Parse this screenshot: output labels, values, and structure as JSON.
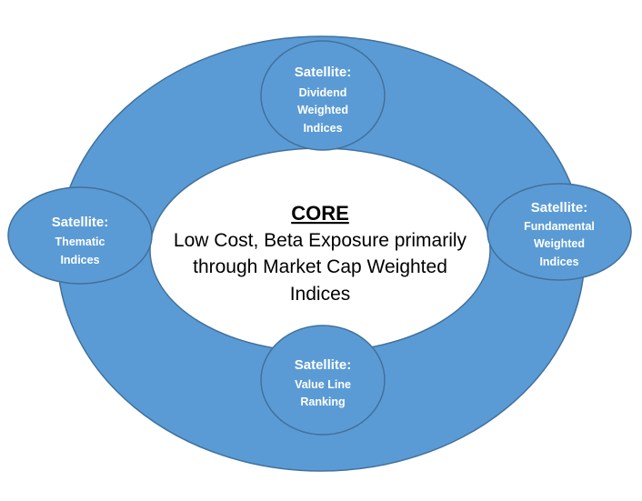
{
  "core": {
    "title": "CORE",
    "line1": "Low Cost, Beta Exposure primarily",
    "line2": "through Market Cap Weighted",
    "line3": "Indices"
  },
  "satellites": {
    "top": {
      "heading": "Satellite:",
      "line1": "Dividend",
      "line2": "Weighted",
      "line3": "Indices"
    },
    "left": {
      "heading": "Satellite:",
      "line1": "Thematic",
      "line2": "Indices"
    },
    "right": {
      "heading": "Satellite:",
      "line1": "Fundamental",
      "line2": "Weighted",
      "line3": "Indices"
    },
    "bottom": {
      "heading": "Satellite:",
      "line1": "Value Line",
      "line2": "Ranking"
    }
  },
  "colors": {
    "ring_fill": "#5b9bd5",
    "ring_stroke": "#41719c",
    "core_fill": "#ffffff",
    "satellite_text": "#ffffff",
    "core_text": "#000000"
  }
}
